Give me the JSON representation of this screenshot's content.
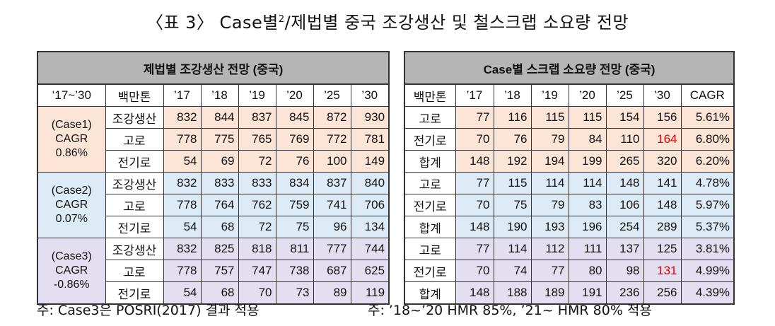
{
  "title": {
    "prefix": "〈표 3〉 Case별",
    "sup": "2",
    "suffix": "/제법별 중국 조강생산 및 철스크랩 소요량 전망"
  },
  "left_table": {
    "heading": "제법별 조강생산 전망 (중국)",
    "col_headers": [
      "‘17~’30",
      "백만톤",
      "’17",
      "’18",
      "’19",
      "’20",
      "’25",
      "’30"
    ],
    "groups": [
      {
        "case_label": [
          "(Case1)",
          "CAGR",
          "0.86%"
        ],
        "rows": [
          {
            "label": "조강생산",
            "values": [
              "832",
              "844",
              "837",
              "845",
              "872",
              "930"
            ]
          },
          {
            "label": "고로",
            "values": [
              "778",
              "775",
              "765",
              "769",
              "772",
              "781"
            ]
          },
          {
            "label": "전기로",
            "values": [
              "54",
              "69",
              "72",
              "76",
              "100",
              "149"
            ]
          }
        ]
      },
      {
        "case_label": [
          "(Case2)",
          "CAGR",
          "0.07%"
        ],
        "rows": [
          {
            "label": "조강생산",
            "values": [
              "832",
              "833",
              "833",
              "834",
              "837",
              "840"
            ]
          },
          {
            "label": "고로",
            "values": [
              "778",
              "764",
              "762",
              "759",
              "741",
              "706"
            ]
          },
          {
            "label": "전기로",
            "values": [
              "54",
              "68",
              "72",
              "75",
              "96",
              "134"
            ]
          }
        ]
      },
      {
        "case_label": [
          "(Case3)",
          "CAGR",
          "-0.86%"
        ],
        "rows": [
          {
            "label": "조강생산",
            "values": [
              "832",
              "825",
              "818",
              "811",
              "777",
              "744"
            ]
          },
          {
            "label": "고로",
            "values": [
              "778",
              "757",
              "747",
              "738",
              "687",
              "625"
            ]
          },
          {
            "label": "전기로",
            "values": [
              "54",
              "68",
              "70",
              "73",
              "89",
              "119"
            ]
          }
        ]
      }
    ]
  },
  "right_table": {
    "heading": "Case별 스크랩 소요량 전망 (중국)",
    "col_headers": [
      "백만톤",
      "’17",
      "’18",
      "’19",
      "’20",
      "’25",
      "’30",
      "CAGR"
    ],
    "rows": [
      {
        "label": "고로",
        "values": [
          "77",
          "116",
          "115",
          "115",
          "154",
          "156"
        ],
        "cagr": "5.61%"
      },
      {
        "label": "전기로",
        "values": [
          "70",
          "76",
          "79",
          "84",
          "110",
          "164"
        ],
        "cagr": "6.80%"
      },
      {
        "label": "합계",
        "values": [
          "148",
          "192",
          "194",
          "199",
          "265",
          "320"
        ],
        "cagr": "6.20%"
      },
      {
        "label": "고로",
        "values": [
          "77",
          "115",
          "114",
          "114",
          "148",
          "141"
        ],
        "cagr": "4.78%"
      },
      {
        "label": "전기로",
        "values": [
          "70",
          "75",
          "79",
          "83",
          "106",
          "148"
        ],
        "cagr": "5.97%"
      },
      {
        "label": "합계",
        "values": [
          "148",
          "190",
          "193",
          "196",
          "254",
          "289"
        ],
        "cagr": "5.37%"
      },
      {
        "label": "고로",
        "values": [
          "77",
          "114",
          "112",
          "111",
          "137",
          "125"
        ],
        "cagr": "3.81%"
      },
      {
        "label": "전기로",
        "values": [
          "70",
          "74",
          "77",
          "80",
          "98",
          "131"
        ],
        "cagr": "4.99%"
      },
      {
        "label": "합계",
        "values": [
          "148",
          "188",
          "189",
          "191",
          "236",
          "256"
        ],
        "cagr": "4.39%"
      }
    ],
    "highlight_color": "#e00000"
  },
  "colors": {
    "case1": "#fce4d6",
    "case2": "#ddebf7",
    "case3": "#e4dff0",
    "header": "#b5b5b5"
  },
  "footnotes": {
    "left": "주: Case3은 POSRI(2017) 결과 적용",
    "right": "주: ’18~’20 HMR 85%, ’21~ HMR 80% 적용"
  }
}
